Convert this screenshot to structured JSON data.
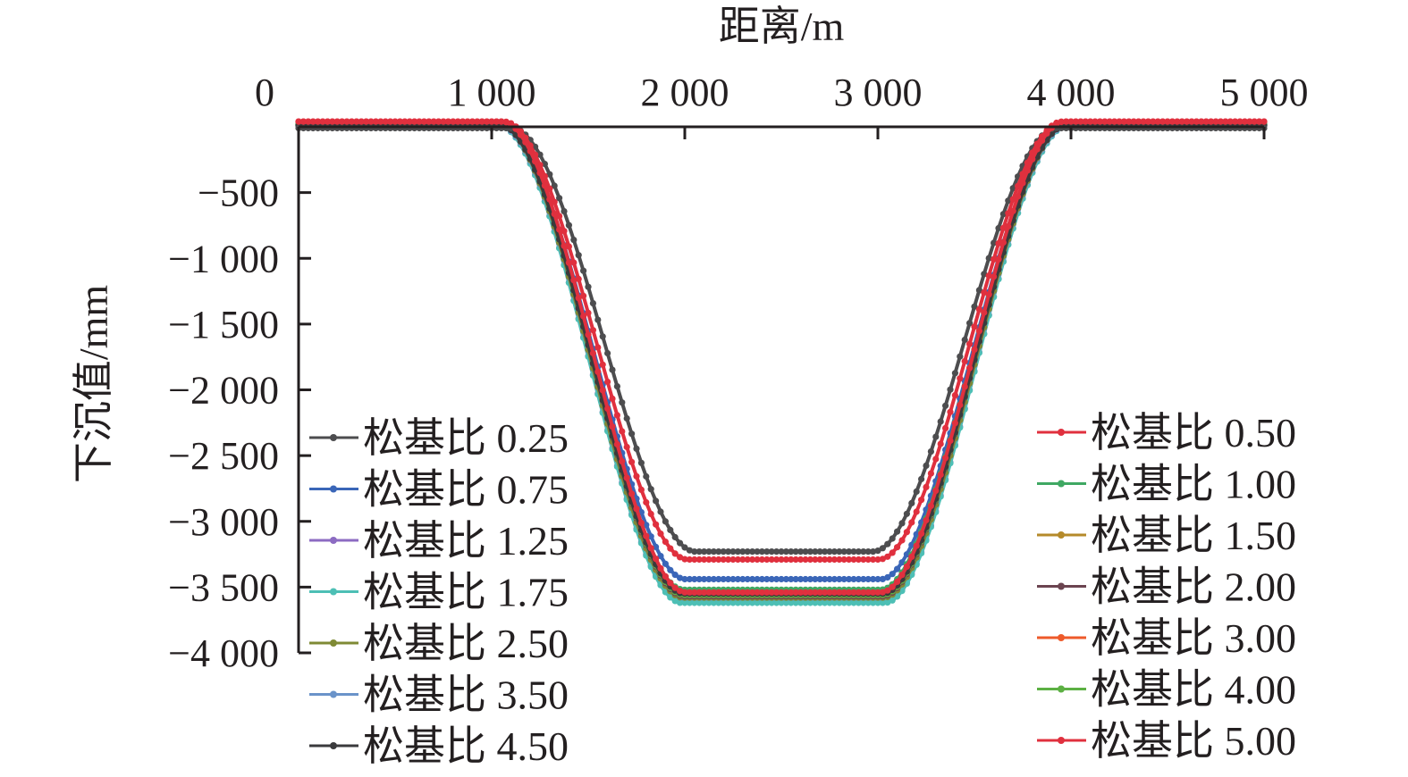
{
  "chart_data": {
    "type": "line",
    "title": "",
    "xlabel": "距离/m",
    "ylabel": "下沉值/mm",
    "xlim": [
      0,
      5000
    ],
    "ylim": [
      -4000,
      0
    ],
    "x_axis_position": "top",
    "xticks": [
      0,
      1000,
      2000,
      3000,
      4000,
      5000
    ],
    "xtick_labels": [
      "0",
      "1 000",
      "2 000",
      "3 000",
      "4 000",
      "5 000"
    ],
    "yticks": [
      -500,
      -1000,
      -1500,
      -2000,
      -2500,
      -3000,
      -3500,
      -4000
    ],
    "ytick_labels": [
      "−500",
      "−1 000",
      "−1 500",
      "−2 000",
      "−2 500",
      "−3 000",
      "−3 500",
      "−4 000"
    ],
    "grid": false,
    "legend_placement": "split: lower-left and lower-right",
    "profile_x": [
      0,
      200,
      400,
      600,
      800,
      900,
      1000,
      1100,
      1200,
      1300,
      1400,
      1500,
      1600,
      1700,
      1800,
      1900,
      2000,
      2100,
      2200,
      2300,
      2400,
      2500,
      2600,
      2700,
      2800,
      2900,
      3000,
      3100,
      3200,
      3300,
      3400,
      3500,
      3600,
      3700,
      3800,
      3900,
      4000,
      4100,
      4200,
      4400,
      4600,
      4800,
      5000
    ],
    "series": [
      {
        "name": "松基比 0.25",
        "color": "#4d4d4f",
        "plateau": -3230,
        "edge_left": 1580,
        "edge_right": 3450,
        "start": -10
      },
      {
        "name": "松基比 0.50",
        "color": "#e0303e",
        "plateau": -3290,
        "edge_left": 1540,
        "edge_right": 3480,
        "start": 40
      },
      {
        "name": "松基比 0.75",
        "color": "#3a66b8",
        "plateau": -3440,
        "edge_left": 1530,
        "edge_right": 3490,
        "start": 10
      },
      {
        "name": "松基比 1.00",
        "color": "#3fa863",
        "plateau": -3520,
        "edge_left": 1520,
        "edge_right": 3490,
        "start": 20
      },
      {
        "name": "松基比 1.25",
        "color": "#8c6bc2",
        "plateau": -3610,
        "edge_left": 1510,
        "edge_right": 3510,
        "start": 10
      },
      {
        "name": "松基比 1.50",
        "color": "#b58a2a",
        "plateau": -3560,
        "edge_left": 1520,
        "edge_right": 3500,
        "start": 20
      },
      {
        "name": "松基比 1.75",
        "color": "#4dbfb5",
        "plateau": -3620,
        "edge_left": 1510,
        "edge_right": 3510,
        "start": 10
      },
      {
        "name": "松基比 2.00",
        "color": "#6b4450",
        "plateau": -3570,
        "edge_left": 1520,
        "edge_right": 3500,
        "start": 20
      },
      {
        "name": "松基比 2.50",
        "color": "#7f8a35",
        "plateau": -3580,
        "edge_left": 1515,
        "edge_right": 3505,
        "start": 20
      },
      {
        "name": "松基比 3.00",
        "color": "#ee5a2a",
        "plateau": -3560,
        "edge_left": 1520,
        "edge_right": 3500,
        "start": 20
      },
      {
        "name": "松基比 3.50",
        "color": "#6a93c9",
        "plateau": -3580,
        "edge_left": 1515,
        "edge_right": 3505,
        "start": 10
      },
      {
        "name": "松基比 4.00",
        "color": "#5cb043",
        "plateau": -3560,
        "edge_left": 1520,
        "edge_right": 3500,
        "start": 20
      },
      {
        "name": "松基比 4.50",
        "color": "#3a3a3c",
        "plateau": -3550,
        "edge_left": 1520,
        "edge_right": 3500,
        "start": 10
      },
      {
        "name": "松基比 5.00",
        "color": "#e0303e",
        "plateau": -3540,
        "edge_left": 1530,
        "edge_right": 3490,
        "start": 40
      }
    ],
    "legend_left": [
      "松基比 0.25",
      "松基比 0.75",
      "松基比 1.25",
      "松基比 1.75",
      "松基比 2.50",
      "松基比 3.50",
      "松基比 4.50"
    ],
    "legend_right": [
      "松基比 0.50",
      "松基比 1.00",
      "松基比 1.50",
      "松基比 2.00",
      "松基比 3.00",
      "松基比 4.00",
      "松基比 5.00"
    ]
  }
}
